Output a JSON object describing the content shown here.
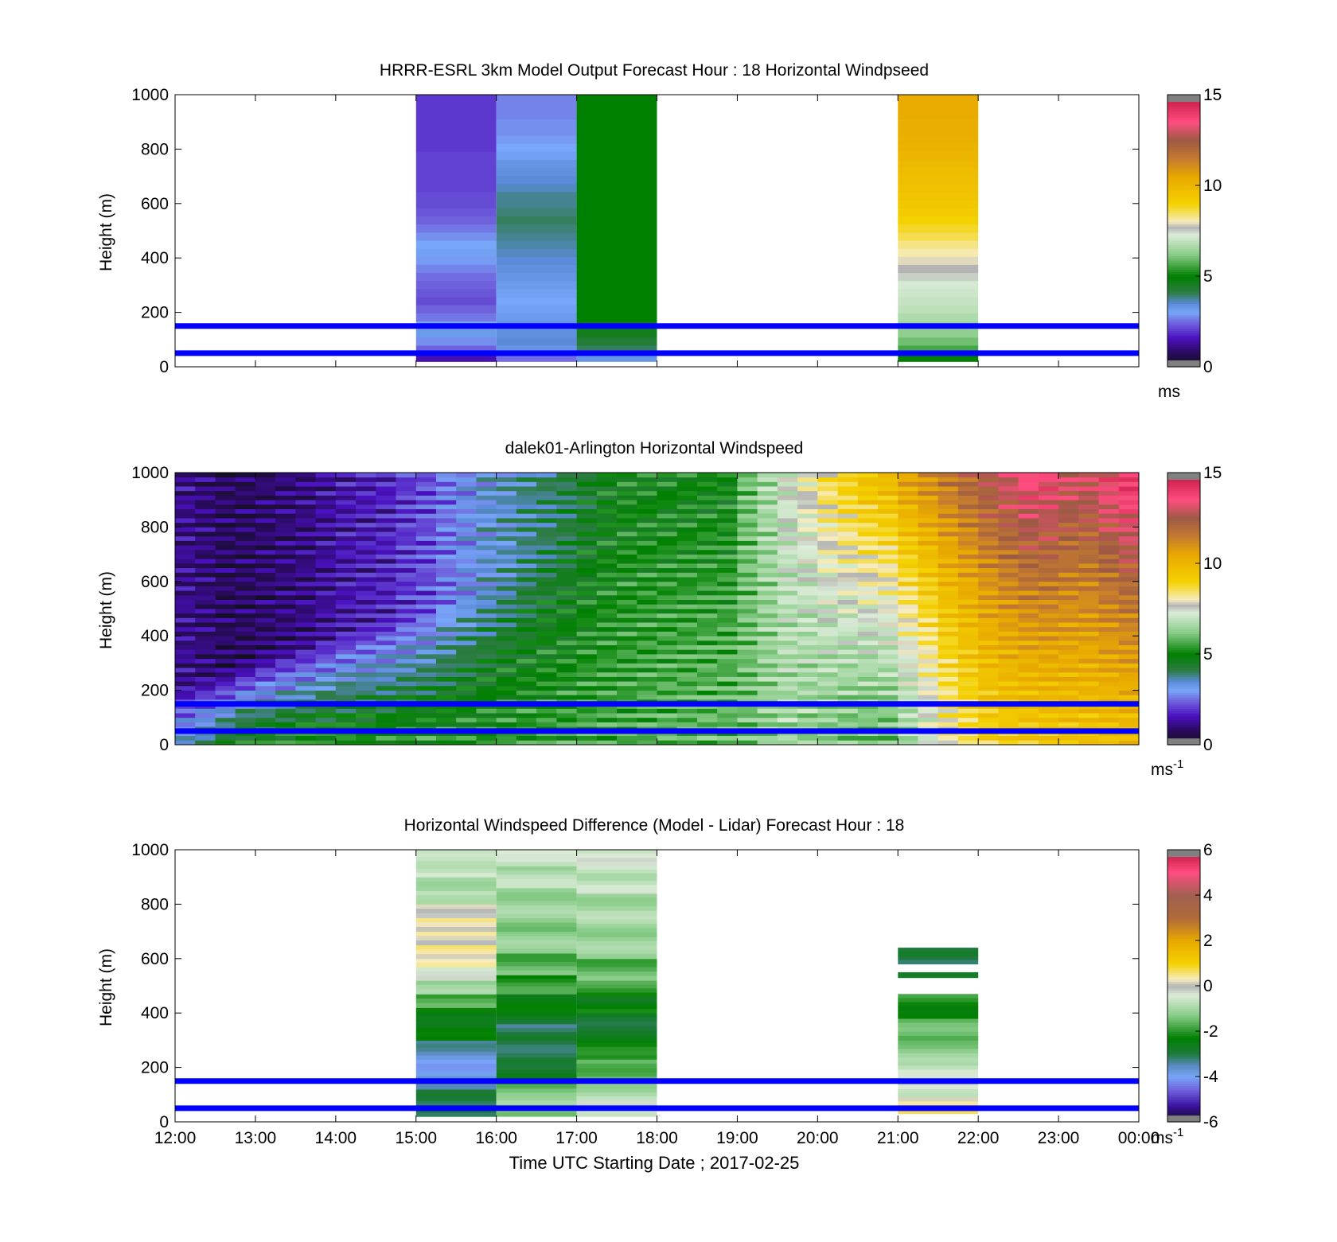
{
  "figure": {
    "x_axis_label": "Time UTC  Starting Date ; 2017-02-25",
    "x_tick_labels": [
      "12:00",
      "13:00",
      "14:00",
      "15:00",
      "16:00",
      "17:00",
      "18:00",
      "19:00",
      "20:00",
      "21:00",
      "22:00",
      "23:00",
      "00:00"
    ]
  },
  "chart_data": [
    {
      "type": "heatmap",
      "title": "HRRR-ESRL 3km Model Output   Forecast Hour : 18 Horizontal Windpseed",
      "ylabel": "Height (m)",
      "xlim": [
        "12:00",
        "00:00"
      ],
      "ylim": [
        0,
        1000
      ],
      "yticks": [
        0,
        200,
        400,
        600,
        800,
        1000
      ],
      "colorbar": {
        "range": [
          0,
          15
        ],
        "ticks": [
          0,
          5,
          10,
          15
        ],
        "unit_base": "ms",
        "unit_exp": ""
      },
      "reference_lines_m": [
        50,
        150
      ],
      "columns": [
        {
          "start": "15:00",
          "end": "16:00",
          "speeds_low_to_high": [
            1.5,
            2.4,
            2.8,
            3.2,
            3.0,
            2.6,
            2.4,
            2.2,
            2.3,
            2.4,
            2.5,
            2.7,
            2.9,
            3.1,
            3.0,
            2.8,
            2.6,
            2.4,
            2.3,
            2.2,
            2.2,
            2.1,
            2.1,
            2.1,
            2.1,
            2.1,
            2.0,
            2.0,
            2.0,
            2.0,
            2.0,
            2.0,
            2.0
          ]
        },
        {
          "start": "16:00",
          "end": "17:00",
          "speeds_low_to_high": [
            2.5,
            3.3,
            3.5,
            3.4,
            3.3,
            3.2,
            3.1,
            3.0,
            3.1,
            3.2,
            3.3,
            3.4,
            3.5,
            3.6,
            3.7,
            3.8,
            3.9,
            4.0,
            3.9,
            3.8,
            3.8,
            3.6,
            3.5,
            3.4,
            3.3,
            3.1,
            3.0,
            2.9,
            2.8,
            2.8,
            2.7,
            2.7,
            2.7
          ]
        },
        {
          "start": "17:00",
          "end": "18:00",
          "speeds_low_to_high": [
            3.3,
            4.0,
            4.3,
            4.6,
            4.8,
            5.0,
            5.0,
            5.0,
            5.0,
            5.0,
            5.0,
            5.0,
            5.0,
            5.0,
            5.0,
            5.0,
            5.0,
            5.0,
            5.0,
            5.0,
            5.0,
            5.0,
            5.0,
            5.0,
            5.0,
            5.0,
            5.0,
            5.0,
            5.0,
            5.0,
            5.0,
            5.0,
            5.0
          ]
        },
        {
          "start": "21:00",
          "end": "22:00",
          "speeds_low_to_high": [
            5.0,
            5.6,
            6.0,
            6.3,
            6.5,
            6.7,
            6.9,
            7.0,
            7.1,
            7.2,
            7.5,
            7.7,
            7.9,
            8.1,
            8.3,
            8.6,
            8.8,
            9.0,
            9.2,
            9.4,
            9.5,
            9.6,
            9.7,
            9.8,
            9.9,
            10.0,
            10.1,
            10.2,
            10.3,
            10.3,
            10.4,
            10.4,
            10.4
          ]
        }
      ]
    },
    {
      "type": "heatmap",
      "title": "dalek01-Arlington  Horizontal Windspeed",
      "ylabel": "Height (m)",
      "xlim": [
        "12:00",
        "00:00"
      ],
      "ylim": [
        0,
        1000
      ],
      "yticks": [
        0,
        200,
        400,
        600,
        800,
        1000
      ],
      "colorbar": {
        "range": [
          0,
          15
        ],
        "ticks": [
          0,
          5,
          10,
          15
        ],
        "unit_base": "ms",
        "unit_exp": "-1"
      },
      "reference_lines_m": [
        50,
        150
      ],
      "profile_times": [
        "12:00",
        "12:15",
        "12:30",
        "12:45",
        "13:00",
        "13:15",
        "13:30",
        "13:45",
        "14:00",
        "14:15",
        "14:30",
        "14:45",
        "15:00",
        "15:15",
        "15:30",
        "15:45",
        "16:00",
        "16:15",
        "16:30",
        "16:45",
        "17:00",
        "17:15",
        "17:30",
        "17:45",
        "18:00",
        "18:15",
        "18:30",
        "18:45",
        "19:00",
        "19:15",
        "19:30",
        "19:45",
        "20:00",
        "20:15",
        "20:30",
        "20:45",
        "21:00",
        "21:15",
        "21:30",
        "21:45",
        "22:00",
        "22:15",
        "22:30",
        "22:45",
        "23:00",
        "23:15",
        "23:30",
        "23:45"
      ],
      "surface_speeds": [
        3.5,
        4.0,
        4.5,
        5.0,
        5.0,
        5.2,
        5.3,
        5.3,
        5.3,
        5.3,
        5.3,
        5.3,
        5.3,
        5.3,
        5.3,
        5.3,
        5.4,
        5.4,
        5.5,
        5.5,
        5.6,
        5.6,
        5.6,
        5.7,
        5.8,
        5.8,
        5.9,
        5.9,
        6.0,
        6.3,
        6.5,
        6.3,
        6.2,
        6.0,
        5.9,
        5.9,
        6.5,
        7.2,
        8.0,
        8.5,
        9.0,
        9.2,
        9.3,
        9.4,
        9.5,
        9.5,
        9.6,
        9.7
      ],
      "top_speeds": [
        1.2,
        1.0,
        0.8,
        0.8,
        0.9,
        1.0,
        1.1,
        1.3,
        1.5,
        1.6,
        1.7,
        2.0,
        2.2,
        2.6,
        3.0,
        3.3,
        3.5,
        3.8,
        4.0,
        4.2,
        4.5,
        4.8,
        5.0,
        5.0,
        5.0,
        5.0,
        5.0,
        5.0,
        6.0,
        6.6,
        7.3,
        7.8,
        8.5,
        9.0,
        9.5,
        9.8,
        10.5,
        11.0,
        11.5,
        12.0,
        12.5,
        13.0,
        13.5,
        13.5,
        13.0,
        13.0,
        13.5,
        14.0
      ],
      "transition_heights_m": [
        220,
        250,
        280,
        310,
        340,
        360,
        380,
        400,
        420,
        440,
        460,
        480,
        500,
        530,
        560,
        600,
        650,
        700,
        750,
        780,
        800,
        820,
        840,
        860,
        880,
        900,
        920,
        940,
        950,
        950,
        950,
        950,
        950,
        950,
        950,
        950,
        950,
        950,
        950,
        950,
        950,
        950,
        950,
        950,
        950,
        950,
        950,
        950
      ]
    },
    {
      "type": "heatmap",
      "title": "Horizontal Windspeed Difference (Model - Lidar) Forecast Hour : 18",
      "ylabel": "Height (m)",
      "xlabel": "Time UTC  Starting Date ; 2017-02-25",
      "xlim": [
        "12:00",
        "00:00"
      ],
      "ylim": [
        0,
        1000
      ],
      "yticks": [
        0,
        200,
        400,
        600,
        800,
        1000
      ],
      "colorbar": {
        "range": [
          -6,
          6
        ],
        "ticks": [
          -6,
          -4,
          -2,
          0,
          2,
          4,
          6
        ],
        "unit_base": "ms",
        "unit_exp": "-1"
      },
      "reference_lines_m": [
        50,
        150
      ],
      "columns": [
        {
          "start": "15:00",
          "end": "16:00",
          "rows": [
            [
              20,
              60,
              -2.8
            ],
            [
              60,
              120,
              -3.2
            ],
            [
              120,
              230,
              -3.8
            ],
            [
              230,
              300,
              -3.6
            ],
            [
              300,
              360,
              -2.6
            ],
            [
              360,
              420,
              -2.3
            ],
            [
              420,
              470,
              -1.8
            ],
            [
              470,
              520,
              -1.2
            ],
            [
              520,
              570,
              -0.6
            ],
            [
              570,
              600,
              0.1
            ],
            [
              600,
              650,
              0.3
            ],
            [
              650,
              700,
              0.2
            ],
            [
              700,
              750,
              0.4
            ],
            [
              750,
              800,
              0.2
            ],
            [
              800,
              850,
              -0.6
            ],
            [
              850,
              900,
              -0.8
            ],
            [
              900,
              960,
              -0.5
            ],
            [
              960,
              1000,
              -0.9
            ]
          ]
        },
        {
          "start": "16:00",
          "end": "17:00",
          "rows": [
            [
              20,
              80,
              -1.2
            ],
            [
              80,
              150,
              -1.5
            ],
            [
              150,
              220,
              -2.6
            ],
            [
              220,
              300,
              -2.9
            ],
            [
              300,
              360,
              -3.1
            ],
            [
              360,
              420,
              -2.6
            ],
            [
              420,
              470,
              -2.3
            ],
            [
              470,
              540,
              -2.0
            ],
            [
              540,
              620,
              -1.6
            ],
            [
              620,
              700,
              -1.3
            ],
            [
              700,
              780,
              -1.2
            ],
            [
              780,
              860,
              -1.0
            ],
            [
              860,
              940,
              -0.9
            ],
            [
              940,
              1000,
              -0.7
            ]
          ]
        },
        {
          "start": "17:00",
          "end": "18:00",
          "rows": [
            [
              20,
              80,
              -0.6
            ],
            [
              80,
              150,
              -0.9
            ],
            [
              150,
              230,
              -1.5
            ],
            [
              230,
              320,
              -2.3
            ],
            [
              320,
              400,
              -2.7
            ],
            [
              400,
              460,
              -2.4
            ],
            [
              460,
              520,
              -2.0
            ],
            [
              520,
              600,
              -1.6
            ],
            [
              600,
              680,
              -1.2
            ],
            [
              680,
              760,
              -1.0
            ],
            [
              760,
              840,
              -0.9
            ],
            [
              840,
              900,
              -0.7
            ],
            [
              900,
              940,
              -0.8
            ],
            [
              940,
              1000,
              -0.6
            ]
          ]
        },
        {
          "start": "21:00",
          "end": "22:00",
          "rows": [
            [
              30,
              90,
              0.3
            ],
            [
              90,
              150,
              -0.4
            ],
            [
              150,
              220,
              -0.7
            ],
            [
              220,
              300,
              -1.2
            ],
            [
              300,
              380,
              -1.7
            ],
            [
              380,
              470,
              -2.1
            ],
            [
              530,
              550,
              -2.8
            ],
            [
              580,
              610,
              -2.9
            ],
            [
              610,
              640,
              -2.6
            ]
          ]
        }
      ]
    }
  ]
}
